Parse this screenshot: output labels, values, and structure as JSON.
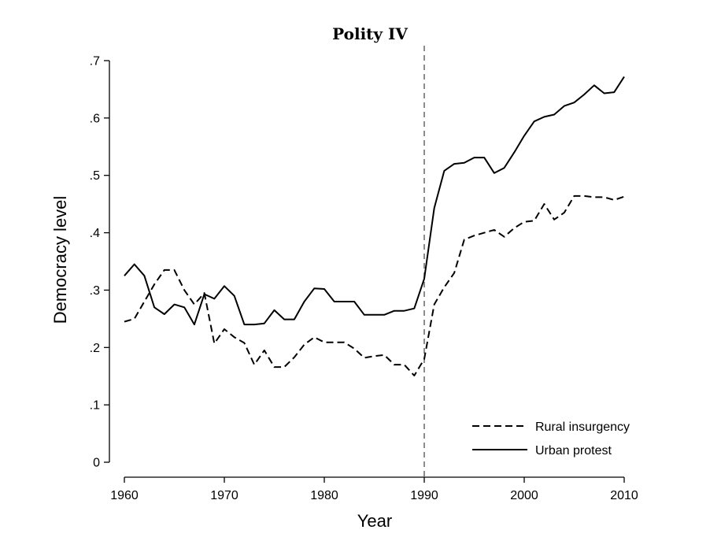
{
  "chart_data": {
    "type": "line",
    "title": "Polity IV",
    "xlabel": "Year",
    "ylabel": "Democracy level",
    "xlim": [
      1960,
      2010
    ],
    "ylim": [
      0,
      0.7
    ],
    "x_ticks": [
      1960,
      1970,
      1980,
      1990,
      2000,
      2010
    ],
    "x_tick_labels": [
      "1960",
      "1970",
      "1980",
      "1990",
      "2000",
      "2010"
    ],
    "y_ticks": [
      0,
      0.1,
      0.2,
      0.3,
      0.4,
      0.5,
      0.6,
      0.7
    ],
    "y_tick_labels": [
      "0",
      ".1",
      ".2",
      ".3",
      ".4",
      ".5",
      ".6",
      ".7"
    ],
    "grid": false,
    "legend_position": "bottom-right",
    "reference_line": {
      "x": 1990,
      "style": "dashed",
      "color": "#666666"
    },
    "x": [
      1960,
      1961,
      1962,
      1963,
      1964,
      1965,
      1966,
      1967,
      1968,
      1969,
      1970,
      1971,
      1972,
      1973,
      1974,
      1975,
      1976,
      1977,
      1978,
      1979,
      1980,
      1981,
      1982,
      1983,
      1984,
      1985,
      1986,
      1987,
      1988,
      1989,
      1990,
      1991,
      1992,
      1993,
      1994,
      1995,
      1996,
      1997,
      1998,
      1999,
      2000,
      2001,
      2002,
      2003,
      2004,
      2005,
      2006,
      2007,
      2008,
      2009,
      2010
    ],
    "series": [
      {
        "name": "Rural insurgency",
        "style": "dashed",
        "color": "#000000",
        "values": [
          0.245,
          0.25,
          0.28,
          0.31,
          0.335,
          0.335,
          0.3,
          0.275,
          0.295,
          0.207,
          0.232,
          0.218,
          0.208,
          0.17,
          0.195,
          0.166,
          0.166,
          0.183,
          0.205,
          0.218,
          0.209,
          0.209,
          0.209,
          0.198,
          0.182,
          0.185,
          0.187,
          0.17,
          0.17,
          0.151,
          0.18,
          0.275,
          0.305,
          0.33,
          0.388,
          0.395,
          0.4,
          0.405,
          0.393,
          0.408,
          0.419,
          0.421,
          0.45,
          0.423,
          0.435,
          0.464,
          0.464,
          0.462,
          0.462,
          0.457,
          0.463
        ]
      },
      {
        "name": "Urban protest",
        "style": "solid",
        "color": "#000000",
        "values": [
          0.325,
          0.345,
          0.325,
          0.27,
          0.258,
          0.275,
          0.27,
          0.24,
          0.293,
          0.285,
          0.307,
          0.29,
          0.24,
          0.24,
          0.242,
          0.265,
          0.249,
          0.249,
          0.28,
          0.303,
          0.302,
          0.28,
          0.28,
          0.28,
          0.257,
          0.257,
          0.257,
          0.264,
          0.264,
          0.268,
          0.32,
          0.443,
          0.508,
          0.52,
          0.522,
          0.531,
          0.531,
          0.504,
          0.513,
          0.54,
          0.569,
          0.594,
          0.602,
          0.606,
          0.621,
          0.627,
          0.641,
          0.657,
          0.643,
          0.645,
          0.672
        ]
      }
    ]
  }
}
